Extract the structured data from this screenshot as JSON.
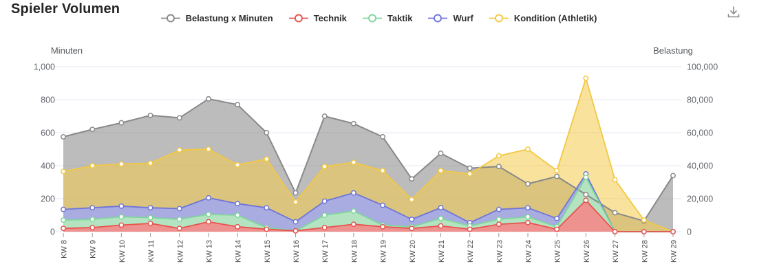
{
  "header": {
    "title": "Spieler Volumen"
  },
  "legend": {
    "items": [
      {
        "label": "Belastung x Minuten",
        "color": "#898989"
      },
      {
        "label": "Technik",
        "color": "#e7534e"
      },
      {
        "label": "Taktik",
        "color": "#7fd69b"
      },
      {
        "label": "Wurf",
        "color": "#6f75d8"
      },
      {
        "label": "Kondition (Athletik)",
        "color": "#f3c844"
      }
    ]
  },
  "chart_data": {
    "type": "area",
    "title": "Spieler Volumen",
    "grid": true,
    "legend_position": "top",
    "categories": [
      "KW 8",
      "KW 9",
      "KW 10",
      "KW 11",
      "KW 12",
      "KW 13",
      "KW 14",
      "KW 15",
      "KW 16",
      "KW 17",
      "KW 18",
      "KW 19",
      "KW 20",
      "KW 21",
      "KW 22",
      "KW 23",
      "KW 24",
      "KW 25",
      "KW 26",
      "KW 27",
      "KW 28",
      "KW 29"
    ],
    "axes": {
      "left": {
        "title": "Minuten",
        "min": 0,
        "max": 1000,
        "ticks": [
          {
            "value": 0,
            "label": "0"
          },
          {
            "value": 200,
            "label": "200"
          },
          {
            "value": 400,
            "label": "400"
          },
          {
            "value": 600,
            "label": "600"
          },
          {
            "value": 800,
            "label": "800"
          },
          {
            "value": 1000,
            "label": "1,000"
          }
        ]
      },
      "right": {
        "title": "Belastung",
        "min": 0,
        "max": 100000,
        "ticks": [
          {
            "value": 0,
            "label": "0"
          },
          {
            "value": 20000,
            "label": "20,000"
          },
          {
            "value": 40000,
            "label": "40,000"
          },
          {
            "value": 60000,
            "label": "60,000"
          },
          {
            "value": 80000,
            "label": "80,000"
          },
          {
            "value": 100000,
            "label": "100,000"
          }
        ]
      }
    },
    "series": [
      {
        "name": "Belastung x Minuten",
        "slug": "belastung-x-minuten",
        "axis": "right",
        "color": "#898989",
        "fill": "rgba(140,140,140,0.58)",
        "line_width": 2,
        "values": [
          57500,
          62000,
          66000,
          70500,
          69000,
          80500,
          77000,
          60000,
          23500,
          70000,
          65500,
          57500,
          32000,
          47500,
          38500,
          39500,
          29000,
          33500,
          22500,
          11500,
          6500,
          34000
        ]
      },
      {
        "name": "Kondition (Athletik)",
        "slug": "kondition-athletik",
        "axis": "left",
        "color": "#f3c844",
        "fill": "rgba(243,202,74,0.55)",
        "line_width": 1.8,
        "values": [
          365,
          400,
          410,
          415,
          495,
          500,
          405,
          440,
          180,
          395,
          420,
          370,
          195,
          370,
          350,
          460,
          500,
          370,
          930,
          315,
          70,
          0
        ]
      },
      {
        "name": "Wurf",
        "slug": "wurf",
        "axis": "left",
        "color": "#6f75d8",
        "fill": "#a8ace1",
        "line_width": 1.8,
        "values": [
          135,
          145,
          155,
          145,
          140,
          205,
          170,
          145,
          60,
          185,
          235,
          160,
          75,
          145,
          55,
          135,
          145,
          80,
          350,
          0,
          0,
          0
        ]
      },
      {
        "name": "Taktik",
        "slug": "taktik",
        "axis": "left",
        "color": "#7fd69b",
        "fill": "#b3e3c0",
        "line_width": 1.8,
        "values": [
          70,
          75,
          90,
          85,
          75,
          105,
          100,
          25,
          5,
          100,
          125,
          40,
          30,
          80,
          35,
          75,
          90,
          30,
          330,
          0,
          0,
          0
        ]
      },
      {
        "name": "Technik",
        "slug": "technik",
        "axis": "left",
        "color": "#e7534e",
        "fill": "#ee928f",
        "line_width": 1.8,
        "values": [
          20,
          25,
          40,
          50,
          20,
          60,
          30,
          15,
          5,
          25,
          45,
          30,
          20,
          35,
          15,
          45,
          55,
          15,
          190,
          0,
          0,
          0
        ]
      }
    ]
  }
}
